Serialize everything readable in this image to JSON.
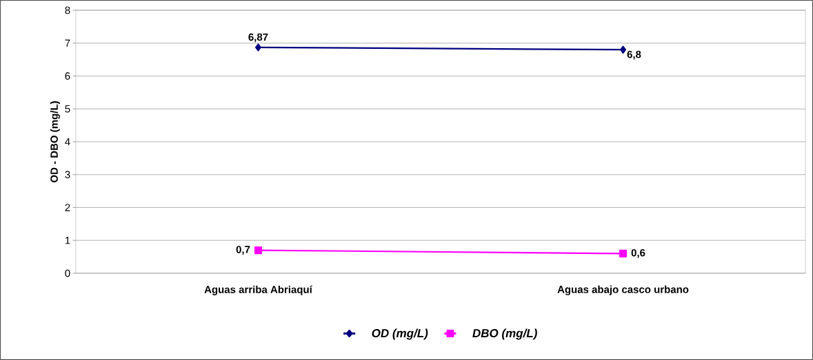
{
  "chart_data": {
    "type": "line",
    "ylabel": "OD - DBO (mg/L)",
    "categories": [
      "Aguas arriba Abriaquí",
      "Aguas abajo casco urbano"
    ],
    "series": [
      {
        "name": "OD (mg/L)",
        "color": "#000080",
        "marker": "diamond",
        "values": [
          6.87,
          6.8
        ],
        "value_labels": [
          "6,87",
          "6,8"
        ]
      },
      {
        "name": "DBO (mg/L)",
        "color": "#ff00ff",
        "marker": "square",
        "values": [
          0.7,
          0.6
        ],
        "value_labels": [
          "0,7",
          "0,6"
        ]
      }
    ],
    "ylim": [
      0,
      8
    ],
    "yticks": [
      0,
      1,
      2,
      3,
      4,
      5,
      6,
      7,
      8
    ],
    "grid": "y",
    "legend": "bottom",
    "line_style": "solid"
  }
}
